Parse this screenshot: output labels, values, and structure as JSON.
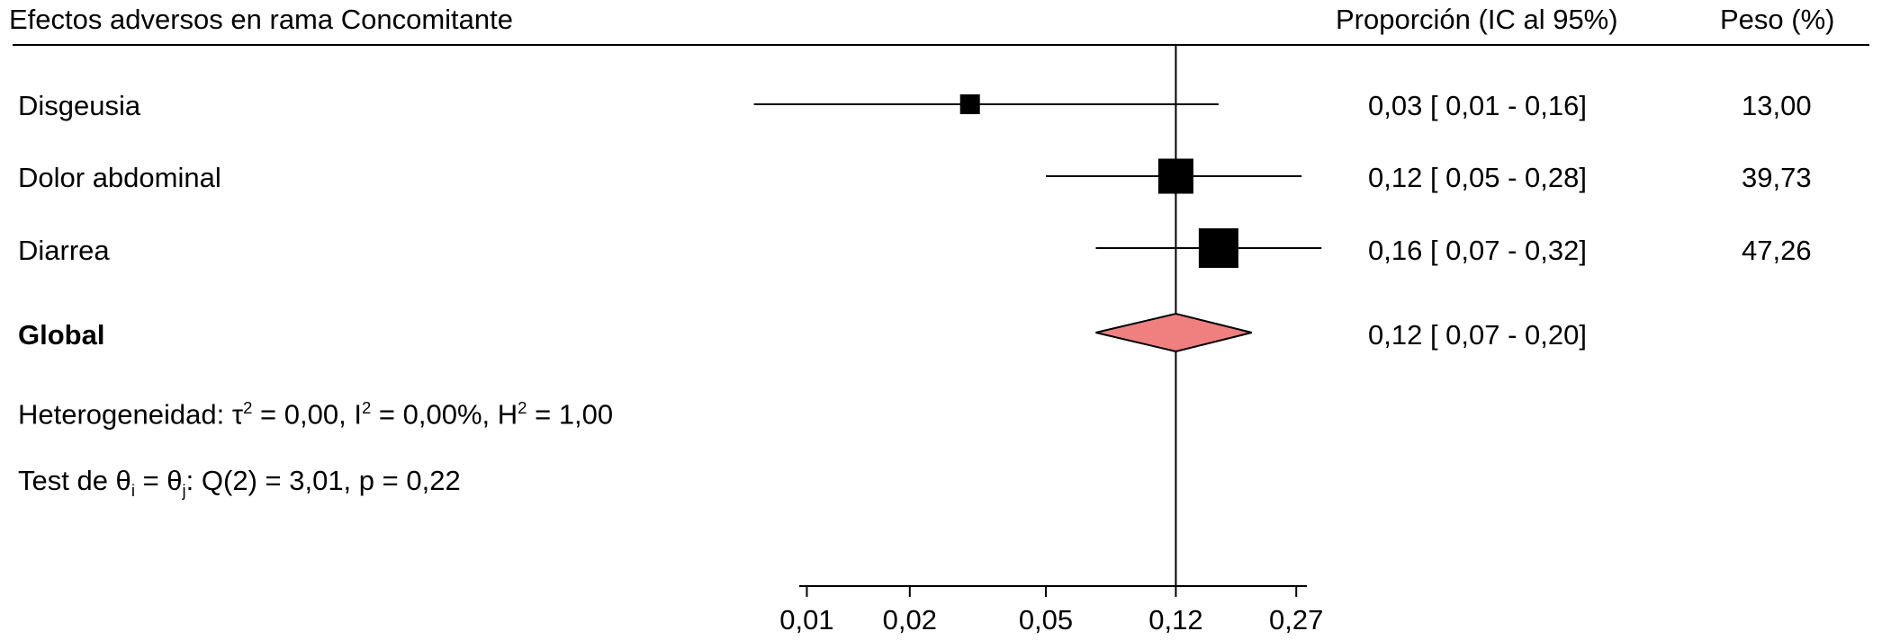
{
  "header": {
    "title": "Efectos adversos en rama Concomitante",
    "col_ci": "Proporción (IC al 95%)",
    "col_weight": "Peso (%)"
  },
  "rows": [
    {
      "label": "Disgeusia",
      "ci_text": "0,03 [ 0,01 -  0,16]",
      "weight": "13,00"
    },
    {
      "label": "Dolor abdominal",
      "ci_text": "0,12 [ 0,05 -  0,28]",
      "weight": "39,73"
    },
    {
      "label": "Diarrea",
      "ci_text": "0,16 [ 0,07 -  0,32]",
      "weight": "47,26"
    }
  ],
  "overall": {
    "label": "Global",
    "ci_text": "0,12 [ 0,07 -  0,20]"
  },
  "heterogeneity": {
    "prefix": "Heterogeneidad: τ",
    "tau_sup": "2",
    "tau_rest": " = 0,00, I",
    "i_sup": "2",
    "i_rest": " = 0,00%, H",
    "h_sup": "2",
    "h_rest": " = 1,00"
  },
  "test": {
    "prefix": "Test de θ",
    "sub_i": "i",
    "mid": " = θ",
    "sub_j": "j",
    "rest": ": Q(2) = 3,01, p = 0,22"
  },
  "colors": {
    "diamond_fill": "#f08080",
    "marker": "#000000"
  },
  "chart_data": {
    "type": "forest",
    "title": "Efectos adversos en rama Concomitante",
    "x_scale": "log",
    "xlim": [
      0.0095,
      0.29
    ],
    "xticks": [
      0.01,
      0.02,
      0.05,
      0.12,
      0.27
    ],
    "xtick_labels": [
      "0,01",
      "0,02",
      "0,05",
      "0,12",
      "0,27"
    ],
    "reference_line": 0.12,
    "studies": [
      {
        "name": "Disgeusia",
        "estimate": 0.03,
        "ci_low": 0.007,
        "ci_high": 0.16,
        "weight": 13.0
      },
      {
        "name": "Dolor abdominal",
        "estimate": 0.12,
        "ci_low": 0.05,
        "ci_high": 0.28,
        "weight": 39.73
      },
      {
        "name": "Diarrea",
        "estimate": 0.16,
        "ci_low": 0.07,
        "ci_high": 0.32,
        "weight": 47.26
      }
    ],
    "overall": {
      "name": "Global",
      "estimate": 0.12,
      "ci_low": 0.07,
      "ci_high": 0.2
    }
  }
}
